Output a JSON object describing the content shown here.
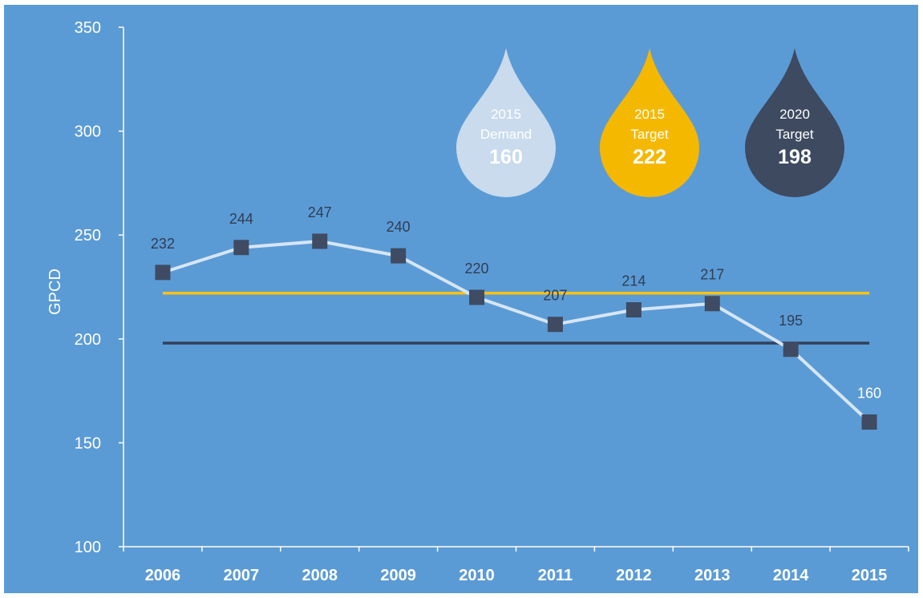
{
  "chart_data": {
    "type": "line",
    "ylabel": "GPCD",
    "xlabel": "",
    "ylim": [
      100,
      350
    ],
    "yticks": [
      100,
      150,
      200,
      250,
      300,
      350
    ],
    "categories": [
      "2006",
      "2007",
      "2008",
      "2009",
      "2010",
      "2011",
      "2012",
      "2013",
      "2014",
      "2015"
    ],
    "series": [
      {
        "values": [
          232,
          244,
          247,
          240,
          220,
          207,
          214,
          217,
          195,
          160
        ]
      }
    ],
    "data_labels": [
      "232",
      "244",
      "247",
      "240",
      "220",
      "207",
      "214",
      "217",
      "195",
      "160"
    ],
    "reference_lines": [
      {
        "value": 222,
        "color": "#f5c218"
      },
      {
        "value": 198,
        "color": "#33405a"
      }
    ],
    "annotations": [
      {
        "line1": "2015",
        "line2": "Demand",
        "value": "160",
        "color": "#c9dbec",
        "label_color": "#ffffff"
      },
      {
        "line1": "2015",
        "line2": "Target",
        "value": "222",
        "color": "#f5b800",
        "label_color": "#ffffff"
      },
      {
        "line1": "2020",
        "line2": "Target",
        "value": "198",
        "color": "#3d4a60",
        "label_color": "#ffffff"
      }
    ],
    "grid": false,
    "colors": {
      "background": "#5b9bd5",
      "axis": "#ffffff",
      "line": "#d6e6f5",
      "marker": "#3e4b62",
      "data_label": "#2f3d55",
      "tick_label": "#ffffff"
    }
  }
}
